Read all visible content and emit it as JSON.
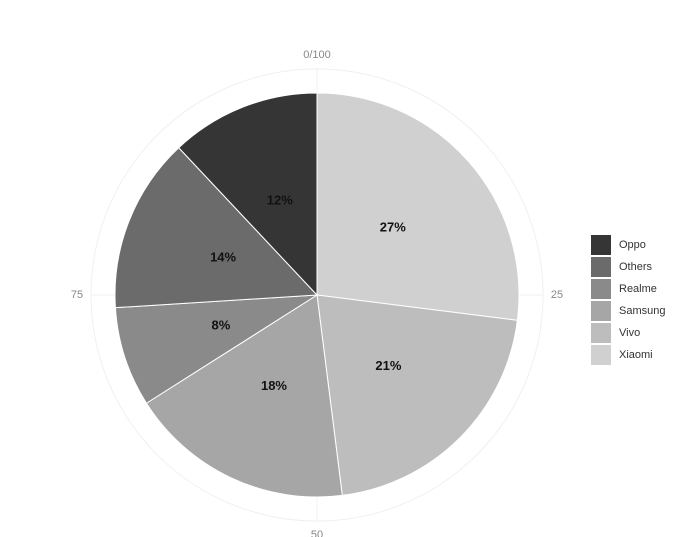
{
  "chart_data": {
    "type": "pie",
    "categories": [
      "Xiaomi",
      "Vivo",
      "Samsung",
      "Realme",
      "Others",
      "Oppo"
    ],
    "values": [
      27,
      21,
      18,
      8,
      14,
      12
    ],
    "value_labels": [
      "27%",
      "21%",
      "18%",
      "8%",
      "14%",
      "12%"
    ],
    "colors": [
      "#d0d0d0",
      "#bdbdbd",
      "#a6a6a6",
      "#8a8a8a",
      "#6b6b6b",
      "#353535"
    ],
    "xlim": [
      0,
      100
    ],
    "xticks": [
      {
        "value": 0,
        "label": "0/100"
      },
      25,
      50,
      75
    ],
    "grid": true,
    "legend": "right"
  }
}
